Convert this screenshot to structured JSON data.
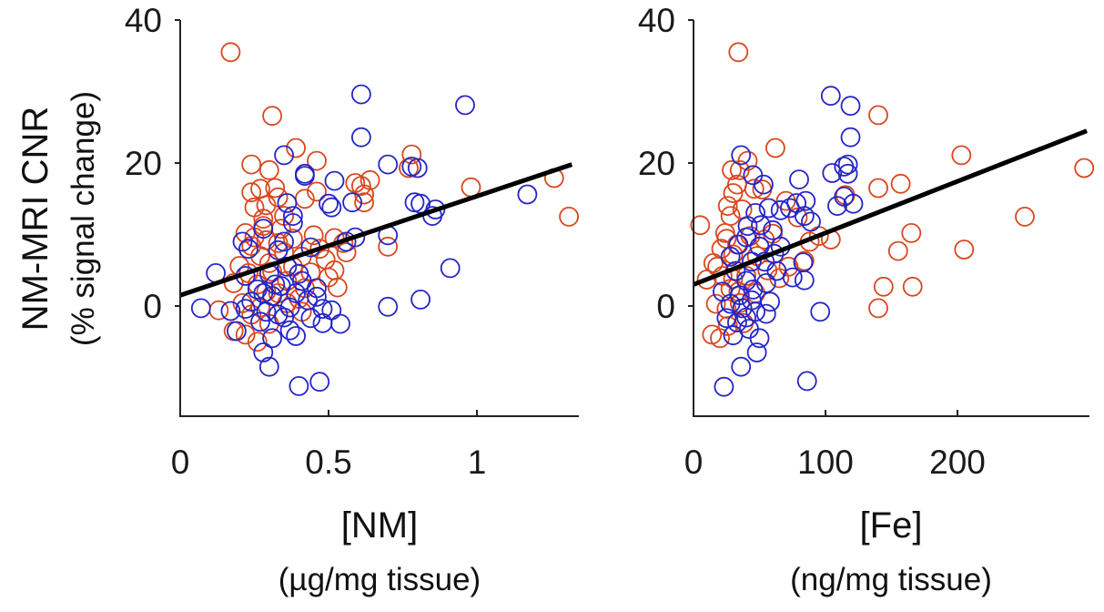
{
  "chart_data": [
    {
      "type": "scatter",
      "panel": "left",
      "xlabel": "[NM]",
      "xlabel_units": "(µg/mg tissue)",
      "ylabel": "NM-MRI CNR",
      "ylabel_units": "(% signal change)",
      "xlim": [
        0,
        1.34
      ],
      "ylim": [
        -15.4,
        40
      ],
      "xticks": [
        0,
        0.5,
        1
      ],
      "xtick_labels": [
        "0",
        "0.5",
        "1"
      ],
      "yticks": [
        0,
        20,
        40
      ],
      "ytick_labels": [
        "0",
        "20",
        "40"
      ],
      "grid": false,
      "fit_line": {
        "x": [
          0,
          1.32
        ],
        "y": [
          1.5,
          19.8
        ]
      },
      "series": [
        {
          "name": "orange",
          "color": "#d9471e",
          "points": [
            [
              0.17,
              35.5
            ],
            [
              0.31,
              26.6
            ],
            [
              0.39,
              22.1
            ],
            [
              0.46,
              20.3
            ],
            [
              0.24,
              19.8
            ],
            [
              0.3,
              19.0
            ],
            [
              0.27,
              16.4
            ],
            [
              0.32,
              16.5
            ],
            [
              0.24,
              15.9
            ],
            [
              0.33,
              15.2
            ],
            [
              0.29,
              14.1
            ],
            [
              0.25,
              13.8
            ],
            [
              0.35,
              12.6
            ],
            [
              0.28,
              12.2
            ],
            [
              0.22,
              10.2
            ],
            [
              0.25,
              9.6
            ],
            [
              0.29,
              9.2
            ],
            [
              0.24,
              8.4
            ],
            [
              0.33,
              8.8
            ],
            [
              0.38,
              9.4
            ],
            [
              0.45,
              9.9
            ],
            [
              0.35,
              7.5
            ],
            [
              0.27,
              7.0
            ],
            [
              0.41,
              6.9
            ],
            [
              0.2,
              5.6
            ],
            [
              0.23,
              4.6
            ],
            [
              0.31,
              4.8
            ],
            [
              0.36,
              3.5
            ],
            [
              0.18,
              3.2
            ],
            [
              0.26,
              3.0
            ],
            [
              0.29,
              2.0
            ],
            [
              0.33,
              1.8
            ],
            [
              0.4,
              1.0
            ],
            [
              0.21,
              0.4
            ],
            [
              0.27,
              -0.2
            ],
            [
              0.13,
              -0.6
            ],
            [
              0.24,
              -1.2
            ],
            [
              0.3,
              -2.5
            ],
            [
              0.22,
              -4.0
            ],
            [
              0.26,
              -5.0
            ],
            [
              0.18,
              -3.5
            ],
            [
              0.49,
              6.5
            ],
            [
              0.52,
              5.0
            ],
            [
              0.5,
              4.0
            ],
            [
              0.53,
              2.6
            ],
            [
              0.56,
              7.5
            ],
            [
              0.47,
              8.0
            ],
            [
              0.52,
              9.5
            ],
            [
              0.55,
              8.8
            ],
            [
              0.44,
              4.7
            ],
            [
              0.42,
              2.5
            ],
            [
              0.38,
              5.5
            ],
            [
              0.34,
              10.8
            ],
            [
              0.28,
              11.2
            ],
            [
              0.59,
              17.2
            ],
            [
              0.61,
              16.8
            ],
            [
              0.62,
              15.6
            ],
            [
              0.62,
              14.5
            ],
            [
              0.7,
              8.3
            ],
            [
              0.78,
              21.2
            ],
            [
              0.77,
              19.3
            ],
            [
              0.64,
              17.6
            ],
            [
              0.46,
              16.0
            ],
            [
              0.42,
              15.0
            ],
            [
              0.98,
              16.6
            ],
            [
              1.26,
              17.9
            ],
            [
              1.31,
              12.5
            ],
            [
              0.36,
              0.4
            ],
            [
              0.41,
              -0.8
            ],
            [
              0.3,
              6.0
            ]
          ]
        },
        {
          "name": "blue",
          "color": "#2525c8",
          "points": [
            [
              0.61,
              29.6
            ],
            [
              0.96,
              28.1
            ],
            [
              0.61,
              23.6
            ],
            [
              0.35,
              21.1
            ],
            [
              0.42,
              18.5
            ],
            [
              0.42,
              18.2
            ],
            [
              0.52,
              17.5
            ],
            [
              0.58,
              14.5
            ],
            [
              0.36,
              14.4
            ],
            [
              0.5,
              14.3
            ],
            [
              0.51,
              13.8
            ],
            [
              0.38,
              12.6
            ],
            [
              0.7,
              19.8
            ],
            [
              0.78,
              19.5
            ],
            [
              0.8,
              19.3
            ],
            [
              0.79,
              14.5
            ],
            [
              0.81,
              14.3
            ],
            [
              0.86,
              13.5
            ],
            [
              0.85,
              12.6
            ],
            [
              1.17,
              15.6
            ],
            [
              0.38,
              11.6
            ],
            [
              0.28,
              10.8
            ],
            [
              0.21,
              9.0
            ],
            [
              0.35,
              9.0
            ],
            [
              0.44,
              8.2
            ],
            [
              0.59,
              9.6
            ],
            [
              0.7,
              9.9
            ],
            [
              0.56,
              9.0
            ],
            [
              0.12,
              4.6
            ],
            [
              0.22,
              4.2
            ],
            [
              0.3,
              4.5
            ],
            [
              0.41,
              3.5
            ],
            [
              0.34,
              2.8
            ],
            [
              0.28,
              1.8
            ],
            [
              0.24,
              0.6
            ],
            [
              0.31,
              1.4
            ],
            [
              0.39,
              1.8
            ],
            [
              0.46,
              2.5
            ],
            [
              0.43,
              0.8
            ],
            [
              0.37,
              -0.2
            ],
            [
              0.07,
              -0.3
            ],
            [
              0.17,
              -0.7
            ],
            [
              0.22,
              -0.4
            ],
            [
              0.29,
              -0.8
            ],
            [
              0.33,
              -1.2
            ],
            [
              0.44,
              -1.7
            ],
            [
              0.48,
              -0.4
            ],
            [
              0.48,
              -2.4
            ],
            [
              0.54,
              -2.5
            ],
            [
              0.37,
              -3.4
            ],
            [
              0.31,
              -4.5
            ],
            [
              0.39,
              -4.2
            ],
            [
              0.19,
              -3.5
            ],
            [
              0.28,
              -6.5
            ],
            [
              0.3,
              -8.5
            ],
            [
              0.4,
              -11.2
            ],
            [
              0.47,
              -10.6
            ],
            [
              0.7,
              -0.1
            ],
            [
              0.81,
              0.9
            ],
            [
              0.91,
              5.3
            ],
            [
              0.33,
              7.8
            ],
            [
              0.36,
              5.5
            ],
            [
              0.26,
              2.3
            ],
            [
              0.23,
              8.0
            ],
            [
              0.32,
              3.0
            ],
            [
              0.4,
              4.5
            ],
            [
              0.46,
              1.3
            ],
            [
              0.27,
              -2.2
            ],
            [
              0.35,
              -1.6
            ],
            [
              0.51,
              -0.6
            ]
          ]
        }
      ]
    },
    {
      "type": "scatter",
      "panel": "right",
      "xlabel": "[Fe]",
      "xlabel_units": "(ng/mg tissue)",
      "xlim": [
        0,
        300
      ],
      "ylim": [
        -15.4,
        40
      ],
      "xticks": [
        0,
        100,
        200
      ],
      "xtick_labels": [
        "0",
        "100",
        "200"
      ],
      "yticks": [
        0,
        20,
        40
      ],
      "ytick_labels": [
        "0",
        "20",
        "40"
      ],
      "grid": false,
      "fit_line": {
        "x": [
          0,
          298
        ],
        "y": [
          3.0,
          24.5
        ]
      },
      "series": [
        {
          "name": "orange",
          "color": "#d9471e",
          "points": [
            [
              34,
              35.5
            ],
            [
              62,
              22.1
            ],
            [
              41,
              20.3
            ],
            [
              29,
              19.0
            ],
            [
              35,
              19.0
            ],
            [
              33,
              17.0
            ],
            [
              46,
              16.4
            ],
            [
              52,
              16.3
            ],
            [
              30,
              15.8
            ],
            [
              26,
              14.0
            ],
            [
              37,
              13.5
            ],
            [
              28,
              12.6
            ],
            [
              24,
              10.2
            ],
            [
              25,
              9.4
            ],
            [
              5,
              11.3
            ],
            [
              21,
              8.0
            ],
            [
              33,
              8.6
            ],
            [
              43,
              9.8
            ],
            [
              54,
              9.3
            ],
            [
              30,
              7.2
            ],
            [
              18,
              5.5
            ],
            [
              22,
              4.2
            ],
            [
              30,
              3.8
            ],
            [
              40,
              4.2
            ],
            [
              28,
              2.4
            ],
            [
              34,
              2.0
            ],
            [
              17,
              0.3
            ],
            [
              25,
              -0.4
            ],
            [
              35,
              0.4
            ],
            [
              47,
              1.8
            ],
            [
              14,
              -4.0
            ],
            [
              20,
              -4.5
            ],
            [
              26,
              -2.8
            ],
            [
              65,
              3.9
            ],
            [
              56,
              5.0
            ],
            [
              72,
              5.5
            ],
            [
              84,
              6.3
            ],
            [
              88,
              9.0
            ],
            [
              95,
              9.8
            ],
            [
              104,
              9.3
            ],
            [
              115,
              15.5
            ],
            [
              140,
              26.7
            ],
            [
              140,
              16.5
            ],
            [
              157,
              17.1
            ],
            [
              155,
              7.7
            ],
            [
              165,
              10.2
            ],
            [
              166,
              2.7
            ],
            [
              144,
              2.7
            ],
            [
              140,
              -0.3
            ],
            [
              203,
              21.1
            ],
            [
              205,
              7.9
            ],
            [
              251,
              12.5
            ],
            [
              296,
              19.3
            ],
            [
              79,
              12.4
            ],
            [
              70,
              14.7
            ],
            [
              60,
              10.1
            ],
            [
              48,
              7.0
            ],
            [
              10,
              3.7
            ],
            [
              15,
              6.0
            ],
            [
              38,
              -2.4
            ]
          ]
        },
        {
          "name": "blue",
          "color": "#2525c8",
          "points": [
            [
              104,
              29.4
            ],
            [
              119,
              28.0
            ],
            [
              119,
              23.6
            ],
            [
              36,
              21.1
            ],
            [
              45,
              18.3
            ],
            [
              105,
              18.6
            ],
            [
              114,
              19.5
            ],
            [
              117,
              19.8
            ],
            [
              117,
              18.5
            ],
            [
              53,
              17.0
            ],
            [
              80,
              17.7
            ],
            [
              85,
              14.7
            ],
            [
              78,
              14.4
            ],
            [
              73,
              13.7
            ],
            [
              66,
              13.4
            ],
            [
              57,
              13.7
            ],
            [
              47,
              13.0
            ],
            [
              41,
              11.2
            ],
            [
              51,
              11.3
            ],
            [
              60,
              10.6
            ],
            [
              109,
              14.0
            ],
            [
              114,
              15.3
            ],
            [
              121,
              14.3
            ],
            [
              84,
              12.6
            ],
            [
              89,
              11.8
            ],
            [
              40,
              9.6
            ],
            [
              34,
              8.6
            ],
            [
              50,
              8.3
            ],
            [
              61,
              7.3
            ],
            [
              44,
              6.2
            ],
            [
              32,
              4.9
            ],
            [
              40,
              3.5
            ],
            [
              55,
              3.2
            ],
            [
              63,
              4.9
            ],
            [
              75,
              4.0
            ],
            [
              84,
              3.6
            ],
            [
              35,
              1.5
            ],
            [
              44,
              0.8
            ],
            [
              28,
              0.3
            ],
            [
              37,
              -0.3
            ],
            [
              47,
              -0.8
            ],
            [
              55,
              -1.1
            ],
            [
              25,
              -1.7
            ],
            [
              33,
              -2.3
            ],
            [
              42,
              -3.2
            ],
            [
              30,
              -4.1
            ],
            [
              50,
              -4.5
            ],
            [
              48,
              -6.5
            ],
            [
              36,
              -8.5
            ],
            [
              23,
              -11.3
            ],
            [
              86,
              -10.5
            ],
            [
              96,
              -0.8
            ],
            [
              83,
              6.1
            ],
            [
              66,
              8.3
            ],
            [
              54,
              6.2
            ],
            [
              28,
              6.9
            ],
            [
              22,
              2.0
            ],
            [
              40,
              -1.6
            ],
            [
              58,
              0.6
            ],
            [
              45,
              2.3
            ]
          ]
        }
      ]
    }
  ]
}
